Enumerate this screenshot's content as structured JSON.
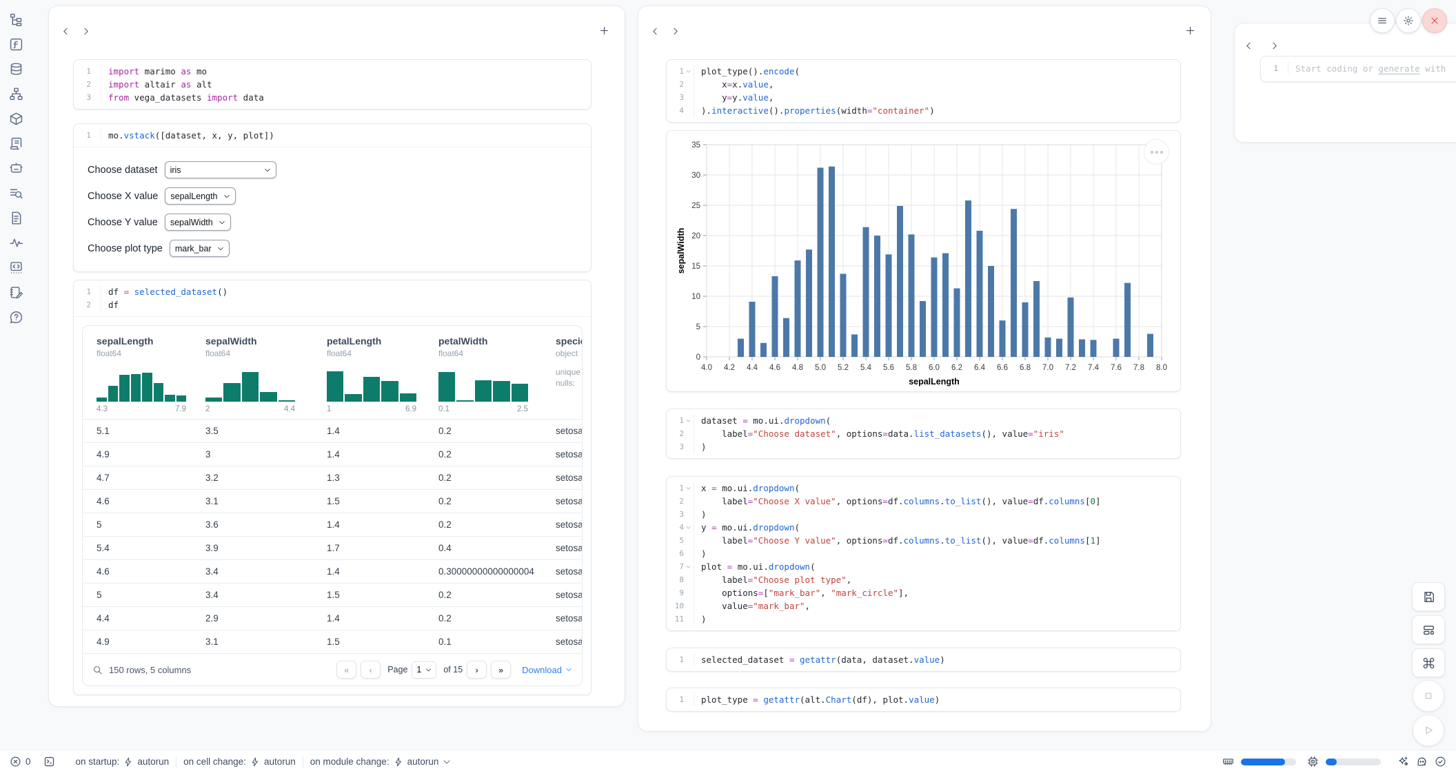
{
  "colors": {
    "accent_blue": "#2f80ed",
    "chart_bar": "#4C78A8",
    "hist_teal": "#0e7c6b",
    "close_red": "#e5484d",
    "progress_blue": "#1a73e8"
  },
  "sidebar": {
    "icons": [
      "file-explorer",
      "functions",
      "datasources",
      "dependency-graph",
      "packages",
      "logs",
      "ai-chat",
      "outline-search",
      "documentation",
      "tracing",
      "snippets",
      "scratchpad",
      "help"
    ]
  },
  "chart_data": {
    "type": "bar",
    "title": "",
    "xlabel": "sepalLength",
    "ylabel": "sepalWidth",
    "xlim": [
      4.0,
      8.0
    ],
    "ylim": [
      0,
      35
    ],
    "x_tick_step": 0.2,
    "y_tick_step": 5,
    "grid": true,
    "bar_color": "#4C78A8",
    "x": [
      4.3,
      4.4,
      4.5,
      4.6,
      4.7,
      4.8,
      4.9,
      5.0,
      5.1,
      5.2,
      5.3,
      5.4,
      5.5,
      5.6,
      5.7,
      5.8,
      5.9,
      6.0,
      6.1,
      6.2,
      6.3,
      6.4,
      6.5,
      6.6,
      6.7,
      6.8,
      6.9,
      7.0,
      7.1,
      7.2,
      7.3,
      7.4,
      7.6,
      7.7,
      7.9
    ],
    "values": [
      3.0,
      9.1,
      2.3,
      13.3,
      6.4,
      15.9,
      17.7,
      31.2,
      31.4,
      13.7,
      3.7,
      21.4,
      20.0,
      16.9,
      24.9,
      20.2,
      9.2,
      16.4,
      17.1,
      11.3,
      25.8,
      20.8,
      15.0,
      6.0,
      24.4,
      9.0,
      12.5,
      3.2,
      3.0,
      9.8,
      2.9,
      2.8,
      3.0,
      12.2,
      3.8
    ]
  },
  "left_panel": {
    "cell_imports": {
      "lines": [
        {
          "n": "1",
          "fold": false,
          "toks": [
            [
              "k",
              "import"
            ],
            [
              "p",
              " marimo "
            ],
            [
              "k",
              "as"
            ],
            [
              "p",
              " mo"
            ]
          ]
        },
        {
          "n": "2",
          "fold": false,
          "toks": [
            [
              "k",
              "import"
            ],
            [
              "p",
              " altair "
            ],
            [
              "k",
              "as"
            ],
            [
              "p",
              " alt"
            ]
          ]
        },
        {
          "n": "3",
          "fold": false,
          "toks": [
            [
              "k",
              "from"
            ],
            [
              "p",
              " vega_datasets "
            ],
            [
              "k",
              "import"
            ],
            [
              "p",
              " data"
            ]
          ]
        }
      ]
    },
    "cell_vstack": {
      "lines": [
        {
          "n": "1",
          "fold": false,
          "toks": [
            [
              "p",
              "mo."
            ],
            [
              "f",
              "vstack"
            ],
            [
              "p",
              "([dataset, x, y, plot])"
            ]
          ]
        }
      ]
    },
    "controls": [
      {
        "label": "Choose dataset",
        "value": "iris",
        "wide": true
      },
      {
        "label": "Choose X value",
        "value": "sepalLength",
        "wide": false
      },
      {
        "label": "Choose Y value",
        "value": "sepalWidth",
        "wide": false
      },
      {
        "label": "Choose plot type",
        "value": "mark_bar",
        "wide": false
      }
    ],
    "cell_df": {
      "lines": [
        {
          "n": "1",
          "fold": false,
          "toks": [
            [
              "p",
              "df "
            ],
            [
              "o",
              "="
            ],
            [
              "p",
              " "
            ],
            [
              "f",
              "selected_dataset"
            ],
            [
              "p",
              "()"
            ]
          ]
        },
        {
          "n": "2",
          "fold": false,
          "toks": [
            [
              "p",
              "df"
            ]
          ]
        }
      ]
    }
  },
  "table": {
    "columns": [
      {
        "name": "sepalLength",
        "dtype": "float64",
        "hist": [
          0.13,
          0.46,
          0.79,
          0.81,
          0.85,
          0.55,
          0.2,
          0.18
        ],
        "min": "4.3",
        "max": "7.9"
      },
      {
        "name": "sepalWidth",
        "dtype": "float64",
        "hist": [
          0.13,
          0.55,
          0.86,
          0.28,
          0.05
        ],
        "min": "2",
        "max": "4.4"
      },
      {
        "name": "petalLength",
        "dtype": "float64",
        "hist": [
          0.88,
          0.22,
          0.73,
          0.6,
          0.25
        ],
        "min": "1",
        "max": "6.9"
      },
      {
        "name": "petalWidth",
        "dtype": "float64",
        "hist": [
          0.87,
          0.05,
          0.63,
          0.6,
          0.52
        ],
        "min": "0.1",
        "max": "2.5"
      },
      {
        "name": "species",
        "dtype": "object",
        "extra": [
          "unique",
          "nulls:"
        ]
      }
    ],
    "rows": [
      [
        "5.1",
        "3.5",
        "1.4",
        "0.2",
        "setosa"
      ],
      [
        "4.9",
        "3",
        "1.4",
        "0.2",
        "setosa"
      ],
      [
        "4.7",
        "3.2",
        "1.3",
        "0.2",
        "setosa"
      ],
      [
        "4.6",
        "3.1",
        "1.5",
        "0.2",
        "setosa"
      ],
      [
        "5",
        "3.6",
        "1.4",
        "0.2",
        "setosa"
      ],
      [
        "5.4",
        "3.9",
        "1.7",
        "0.4",
        "setosa"
      ],
      [
        "4.6",
        "3.4",
        "1.4",
        "0.30000000000000004",
        "setosa"
      ],
      [
        "5",
        "3.4",
        "1.5",
        "0.2",
        "setosa"
      ],
      [
        "4.4",
        "2.9",
        "1.4",
        "0.2",
        "setosa"
      ],
      [
        "4.9",
        "3.1",
        "1.5",
        "0.1",
        "setosa"
      ]
    ],
    "footer": {
      "summary": "150 rows, 5 columns",
      "first": "«",
      "prev": "‹",
      "page_label": "Page",
      "page_value": "1",
      "of_text": "of 15",
      "next": "›",
      "last": "»",
      "download": "Download"
    }
  },
  "mid_panel": {
    "cell_plot": {
      "lines": [
        {
          "n": "1",
          "fold": true,
          "toks": [
            [
              "p",
              "plot_type()."
            ],
            [
              "f",
              "encode"
            ],
            [
              "p",
              "("
            ]
          ]
        },
        {
          "n": "2",
          "fold": false,
          "toks": [
            [
              "p",
              "    x"
            ],
            [
              "o",
              "="
            ],
            [
              "p",
              "x."
            ],
            [
              "f",
              "value"
            ],
            [
              "p",
              ","
            ]
          ]
        },
        {
          "n": "3",
          "fold": false,
          "toks": [
            [
              "p",
              "    y"
            ],
            [
              "o",
              "="
            ],
            [
              "p",
              "y."
            ],
            [
              "f",
              "value"
            ],
            [
              "p",
              ","
            ]
          ]
        },
        {
          "n": "4",
          "fold": false,
          "toks": [
            [
              "p",
              ")."
            ],
            [
              "f",
              "interactive"
            ],
            [
              "p",
              "()."
            ],
            [
              "f",
              "properties"
            ],
            [
              "p",
              "(width"
            ],
            [
              "o",
              "="
            ],
            [
              "s",
              "\"container\""
            ],
            [
              "p",
              ")"
            ]
          ]
        }
      ]
    },
    "cell_dataset": {
      "lines": [
        {
          "n": "1",
          "fold": true,
          "toks": [
            [
              "p",
              "dataset "
            ],
            [
              "o",
              "="
            ],
            [
              "p",
              " mo.ui."
            ],
            [
              "f",
              "dropdown"
            ],
            [
              "p",
              "("
            ]
          ]
        },
        {
          "n": "2",
          "fold": false,
          "toks": [
            [
              "p",
              "    label"
            ],
            [
              "o",
              "="
            ],
            [
              "s",
              "\"Choose dataset\""
            ],
            [
              "p",
              ", options"
            ],
            [
              "o",
              "="
            ],
            [
              "p",
              "data."
            ],
            [
              "f",
              "list_datasets"
            ],
            [
              "p",
              "(), value"
            ],
            [
              "o",
              "="
            ],
            [
              "s",
              "\"iris\""
            ]
          ]
        },
        {
          "n": "3",
          "fold": false,
          "toks": [
            [
              "p",
              ")"
            ]
          ]
        }
      ]
    },
    "cell_xyplot": {
      "lines": [
        {
          "n": "1",
          "fold": true,
          "toks": [
            [
              "p",
              "x "
            ],
            [
              "o",
              "="
            ],
            [
              "p",
              " mo.ui."
            ],
            [
              "f",
              "dropdown"
            ],
            [
              "p",
              "("
            ]
          ]
        },
        {
          "n": "2",
          "fold": false,
          "toks": [
            [
              "p",
              "    label"
            ],
            [
              "o",
              "="
            ],
            [
              "s",
              "\"Choose X value\""
            ],
            [
              "p",
              ", options"
            ],
            [
              "o",
              "="
            ],
            [
              "p",
              "df."
            ],
            [
              "f",
              "columns"
            ],
            [
              "p",
              "."
            ],
            [
              "f",
              "to_list"
            ],
            [
              "p",
              "(), value"
            ],
            [
              "o",
              "="
            ],
            [
              "p",
              "df."
            ],
            [
              "f",
              "columns"
            ],
            [
              "p",
              "["
            ],
            [
              "n",
              "0"
            ],
            [
              "p",
              "]"
            ]
          ]
        },
        {
          "n": "3",
          "fold": false,
          "toks": [
            [
              "p",
              ")"
            ]
          ]
        },
        {
          "n": "4",
          "fold": true,
          "toks": [
            [
              "p",
              "y "
            ],
            [
              "o",
              "="
            ],
            [
              "p",
              " mo.ui."
            ],
            [
              "f",
              "dropdown"
            ],
            [
              "p",
              "("
            ]
          ]
        },
        {
          "n": "5",
          "fold": false,
          "toks": [
            [
              "p",
              "    label"
            ],
            [
              "o",
              "="
            ],
            [
              "s",
              "\"Choose Y value\""
            ],
            [
              "p",
              ", options"
            ],
            [
              "o",
              "="
            ],
            [
              "p",
              "df."
            ],
            [
              "f",
              "columns"
            ],
            [
              "p",
              "."
            ],
            [
              "f",
              "to_list"
            ],
            [
              "p",
              "(), value"
            ],
            [
              "o",
              "="
            ],
            [
              "p",
              "df."
            ],
            [
              "f",
              "columns"
            ],
            [
              "p",
              "["
            ],
            [
              "n",
              "1"
            ],
            [
              "p",
              "]"
            ]
          ]
        },
        {
          "n": "6",
          "fold": false,
          "toks": [
            [
              "p",
              ")"
            ]
          ]
        },
        {
          "n": "7",
          "fold": true,
          "toks": [
            [
              "p",
              "plot "
            ],
            [
              "o",
              "="
            ],
            [
              "p",
              " mo.ui."
            ],
            [
              "f",
              "dropdown"
            ],
            [
              "p",
              "("
            ]
          ]
        },
        {
          "n": "8",
          "fold": false,
          "toks": [
            [
              "p",
              "    label"
            ],
            [
              "o",
              "="
            ],
            [
              "s",
              "\"Choose plot type\""
            ],
            [
              "p",
              ","
            ]
          ]
        },
        {
          "n": "9",
          "fold": false,
          "toks": [
            [
              "p",
              "    options"
            ],
            [
              "o",
              "="
            ],
            [
              "p",
              "["
            ],
            [
              "s",
              "\"mark_bar\""
            ],
            [
              "p",
              ", "
            ],
            [
              "s",
              "\"mark_circle\""
            ],
            [
              "p",
              "],"
            ]
          ]
        },
        {
          "n": "10",
          "fold": false,
          "toks": [
            [
              "p",
              "    value"
            ],
            [
              "o",
              "="
            ],
            [
              "s",
              "\"mark_bar\""
            ],
            [
              "p",
              ","
            ]
          ]
        },
        {
          "n": "11",
          "fold": false,
          "toks": [
            [
              "p",
              ")"
            ]
          ]
        }
      ]
    },
    "cell_selected": {
      "lines": [
        {
          "n": "1",
          "fold": false,
          "toks": [
            [
              "p",
              "selected_dataset "
            ],
            [
              "o",
              "="
            ],
            [
              "p",
              " "
            ],
            [
              "f",
              "getattr"
            ],
            [
              "p",
              "(data, dataset."
            ],
            [
              "f",
              "value"
            ],
            [
              "p",
              ")"
            ]
          ]
        }
      ]
    },
    "cell_plottype": {
      "lines": [
        {
          "n": "1",
          "fold": false,
          "toks": [
            [
              "p",
              "plot_type "
            ],
            [
              "o",
              "="
            ],
            [
              "p",
              " "
            ],
            [
              "f",
              "getattr"
            ],
            [
              "p",
              "(alt."
            ],
            [
              "f",
              "Chart"
            ],
            [
              "p",
              "(df), plot."
            ],
            [
              "f",
              "value"
            ],
            [
              "p",
              ")"
            ]
          ]
        }
      ]
    }
  },
  "right_panel": {
    "cell_new": {
      "gutter": "1",
      "placeholder_prefix": "Start coding or ",
      "placeholder_link": "generate",
      "placeholder_suffix": " with"
    }
  },
  "statusbar": {
    "error_count": "0",
    "segments": [
      {
        "label": "on startup:",
        "value": "autorun",
        "dropdown": false
      },
      {
        "label": "on cell change:",
        "value": "autorun",
        "dropdown": false
      },
      {
        "label": "on module change:",
        "value": "autorun",
        "dropdown": true
      }
    ],
    "ram_pct": 80,
    "cpu_pct": 20
  }
}
